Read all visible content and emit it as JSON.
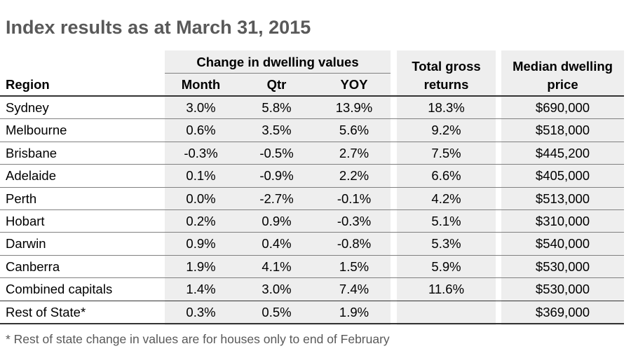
{
  "title": "Index results as at March 31, 2015",
  "header": {
    "region": "Region",
    "change_group": "Change in dwelling values",
    "month": "Month",
    "qtr": "Qtr",
    "yoy": "YOY",
    "total_gross_line1": "Total gross",
    "total_gross_line2": "returns",
    "median_line1": "Median dwelling",
    "median_line2": "price"
  },
  "rows": [
    {
      "region": "Sydney",
      "month": "3.0%",
      "qtr": "5.8%",
      "yoy": "13.9%",
      "total": "18.3%",
      "median": "$690,000"
    },
    {
      "region": "Melbourne",
      "month": "0.6%",
      "qtr": "3.5%",
      "yoy": "5.6%",
      "total": "9.2%",
      "median": "$518,000"
    },
    {
      "region": "Brisbane",
      "month": "-0.3%",
      "qtr": "-0.5%",
      "yoy": "2.7%",
      "total": "7.5%",
      "median": "$445,200"
    },
    {
      "region": "Adelaide",
      "month": "0.1%",
      "qtr": "-0.9%",
      "yoy": "2.2%",
      "total": "6.6%",
      "median": "$405,000"
    },
    {
      "region": "Perth",
      "month": "0.0%",
      "qtr": "-2.7%",
      "yoy": "-0.1%",
      "total": "4.2%",
      "median": "$513,000"
    },
    {
      "region": "Hobart",
      "month": "0.2%",
      "qtr": "0.9%",
      "yoy": "-0.3%",
      "total": "5.1%",
      "median": "$310,000"
    },
    {
      "region": "Darwin",
      "month": "0.9%",
      "qtr": "0.4%",
      "yoy": "-0.8%",
      "total": "5.3%",
      "median": "$540,000"
    },
    {
      "region": "Canberra",
      "month": "1.9%",
      "qtr": "4.1%",
      "yoy": "1.5%",
      "total": "5.9%",
      "median": "$530,000"
    },
    {
      "region": "Combined capitals",
      "month": "1.4%",
      "qtr": "3.0%",
      "yoy": "7.4%",
      "total": "11.6%",
      "median": "$530,000"
    },
    {
      "region": "Rest of State*",
      "month": "0.3%",
      "qtr": "0.5%",
      "yoy": "1.9%",
      "total": "",
      "median": "$369,000"
    }
  ],
  "footnote": "* Rest of state change in values are for houses only to end of February",
  "colors": {
    "title": "#595959",
    "column_shading": "#eeeeee",
    "rule": "#808080"
  }
}
